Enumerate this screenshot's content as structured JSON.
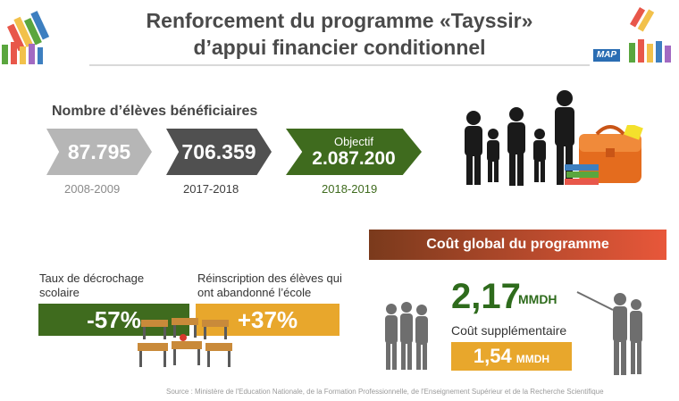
{
  "header": {
    "title_line1": "Renforcement du programme «Tayssir»",
    "title_line2": "d’appui financier conditionnel",
    "logo": "MAP"
  },
  "eleves": {
    "label": "Nombre d’élèves bénéficiaires",
    "items": [
      {
        "value": "87.795",
        "year": "2008-2009"
      },
      {
        "value": "706.359",
        "year": "2017-2018"
      },
      {
        "prefix": "Objectif",
        "value": "2.087.200",
        "year": "2018-2019"
      }
    ]
  },
  "cout": {
    "banner": "Coût global du programme",
    "total": "2,17",
    "total_unit": "MMDH",
    "supplement_label": "Coût supplémentaire",
    "supplement_value": "1,54",
    "supplement_unit": "MMDH"
  },
  "stats": {
    "decrochage_label": "Taux de décrochage scolaire",
    "decrochage_value": "-57%",
    "reinscription_label": "Réinscription des élèves qui ont abandonné l’école",
    "reinscription_value": "+37%"
  },
  "source": "Source : Ministère de l'Education Nationale, de la Formation Professionnelle, de l'Enseignement Supérieur et de la Recherche Scientifique",
  "colors": {
    "green": "#3f6b1e",
    "dark_gray": "#505050",
    "light_gray": "#b6b6b6",
    "orange": "#e8a72c",
    "red_gradient_end": "#e8573a"
  },
  "icons": [
    "pencils-icon",
    "family-silhouette-icon",
    "schoolbag-icon",
    "books-icon",
    "classroom-desks-icon",
    "women-silhouette-icon",
    "teacher-silhouette-icon"
  ]
}
